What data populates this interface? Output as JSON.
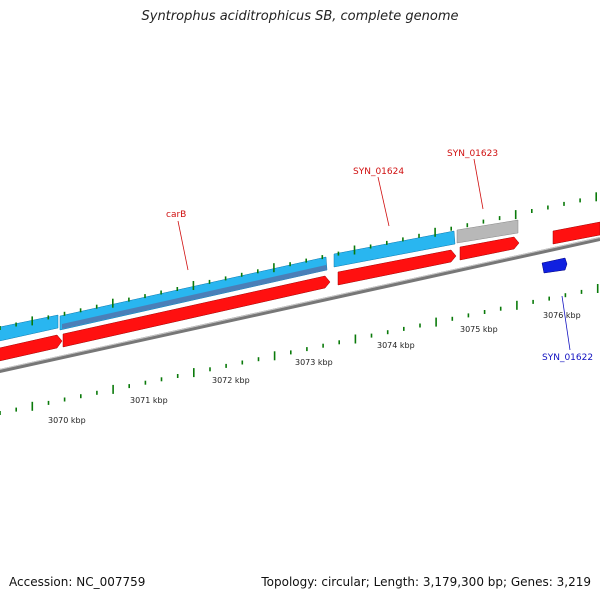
{
  "title": "Syntrophus aciditrophicus SB, complete genome",
  "footer": {
    "accession": "Accession: NC_007759",
    "summary": "Topology: circular; Length: 3,179,300 bp; Genes: 3,219"
  },
  "colors": {
    "forward_cds": "#29b6f0",
    "forward_cds_dark": "#4a7fb8",
    "reverse_cds": "#ff1010",
    "other_gene": "#b8b8b8",
    "small_feature": "#1020e0",
    "backbone": "#888888",
    "tick": "#0a7a0a",
    "label_red": "#d01010",
    "label_blue": "#1010c0"
  },
  "scale": {
    "unit": "kbp",
    "labels": [
      {
        "kbp": 3070,
        "text": "3070 kbp"
      },
      {
        "kbp": 3071,
        "text": "3071 kbp"
      },
      {
        "kbp": 3072,
        "text": "3072 kbp"
      },
      {
        "kbp": 3073,
        "text": "3073 kbp"
      },
      {
        "kbp": 3074,
        "text": "3074 kbp"
      },
      {
        "kbp": 3075,
        "text": "3075 kbp"
      },
      {
        "kbp": 3076,
        "text": "3076 kbp"
      }
    ]
  },
  "genes": [
    {
      "label": "carB",
      "label_color": "label_red"
    },
    {
      "label": "SYN_01624",
      "label_color": "label_red"
    },
    {
      "label": "SYN_01623",
      "label_color": "label_red"
    },
    {
      "label": "SYN_01622",
      "label_color": "label_blue"
    }
  ]
}
